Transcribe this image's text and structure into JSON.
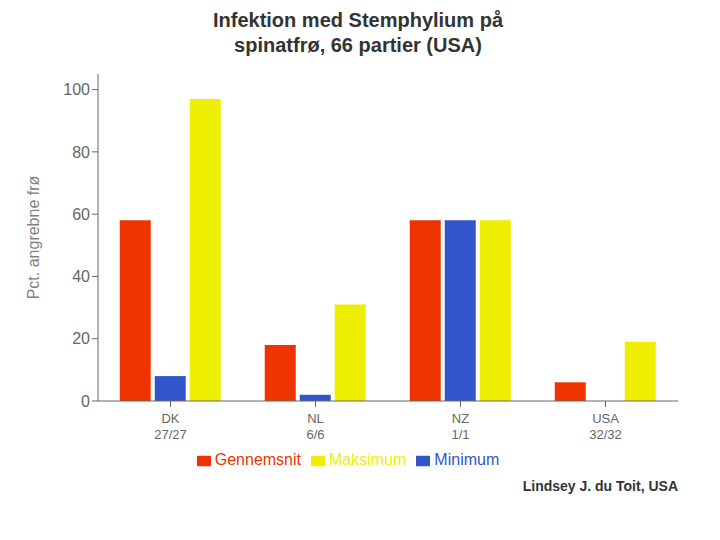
{
  "chart_data": {
    "type": "bar",
    "title": "Infektion med Stemphylium på\nspinatfrø, 66 partier (USA)",
    "ylabel": "Pct. angrebne frø",
    "categories": [
      "DK\n27/27",
      "NL\n6/6",
      "NZ\n1/1",
      "USA\n32/32"
    ],
    "series": [
      {
        "name": "Gennemsnit",
        "color": "#ee3300",
        "values": [
          58,
          18,
          58,
          6
        ]
      },
      {
        "name": "Minimum",
        "color": "#3355cc",
        "values": [
          8,
          2,
          58,
          0
        ]
      },
      {
        "name": "Maksimum",
        "color": "#eeee00",
        "values": [
          97,
          31,
          58,
          19
        ]
      }
    ],
    "ylim": [
      0,
      105
    ],
    "yticks": [
      0,
      20,
      40,
      60,
      80,
      100
    ],
    "grid": false,
    "legend": "bottom",
    "annotations": [
      "Lindsey J. du Toit, USA"
    ]
  }
}
